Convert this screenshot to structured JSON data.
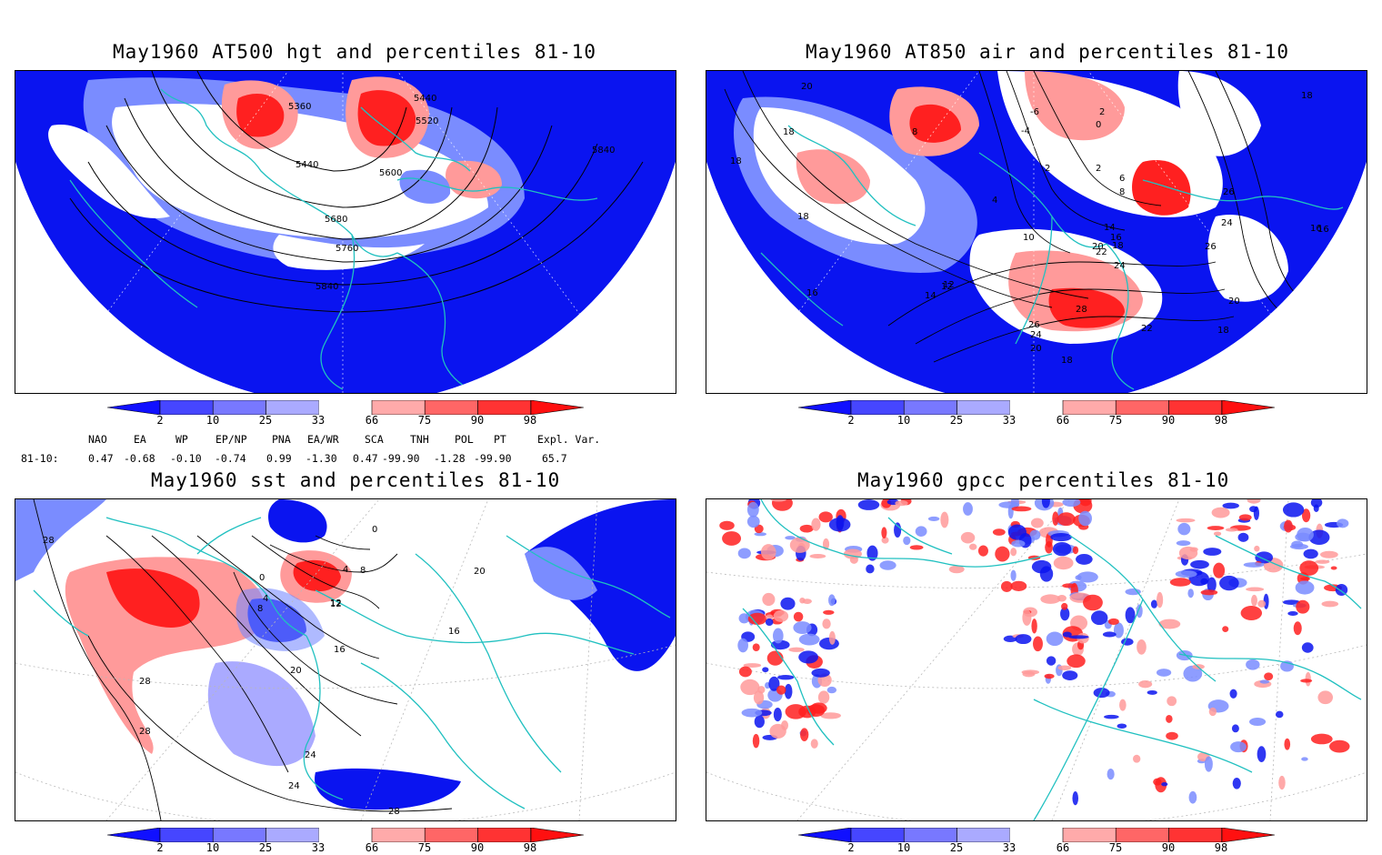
{
  "panels": [
    {
      "id": "hgt",
      "title": "May1960 AT500 hgt and percentiles 81-10",
      "contour_labels": [
        "5360",
        "5440",
        "5520",
        "5440",
        "5600",
        "5680",
        "5760",
        "5840",
        "5840"
      ]
    },
    {
      "id": "air",
      "title": "May1960 AT850 air and percentiles 81-10",
      "contour_labels": [
        "20",
        "18",
        "18",
        "18",
        "16",
        "14",
        "12",
        "10",
        "4",
        "2",
        "-6",
        "-4",
        "0",
        "2",
        "6",
        "8",
        "14",
        "16",
        "18",
        "20",
        "22",
        "24",
        "26",
        "28",
        "24",
        "22",
        "20",
        "18",
        "26",
        "24",
        "26",
        "16",
        "18",
        "20",
        "18",
        "18",
        "8",
        "2",
        "12",
        "16"
      ]
    },
    {
      "id": "sst",
      "title": "May1960 sst and percentiles 81-10",
      "contour_labels": [
        "28",
        "28",
        "24",
        "20",
        "16",
        "12",
        "8",
        "4",
        "0",
        "0",
        "4",
        "8",
        "12",
        "16",
        "20",
        "24",
        "28",
        "28"
      ]
    },
    {
      "id": "gpcc",
      "title": "May1960 gpcc percentiles 81-10",
      "contour_labels": []
    }
  ],
  "colorbar": {
    "ticks": [
      "2",
      "10",
      "25",
      "33",
      "66",
      "75",
      "90",
      "98"
    ],
    "colors": [
      "#1010ff",
      "#4646ff",
      "#7878ff",
      "#aaaaff",
      "#ffffff",
      "#ffaaaa",
      "#ff6666",
      "#ff3333",
      "#ff1010"
    ]
  },
  "indices": {
    "headers": [
      "NAO",
      "EA",
      "WP",
      "EP/NP",
      "PNA",
      "EA/WR",
      "SCA",
      "TNH",
      "POL",
      "PT",
      "Expl. Var."
    ],
    "row_label": "81-10:",
    "values": [
      "0.47",
      "-0.68",
      "-0.10",
      "-0.74",
      "0.99",
      "-1.30",
      "0.47",
      "-99.90",
      "-1.28",
      "-99.90",
      "65.7"
    ]
  },
  "colors": {
    "map_blue": "#0a14f0",
    "map_light_blue": "#7a8cff",
    "coast": "#20c0c0",
    "red": "#ff2020",
    "light_red": "#ff9a9a"
  }
}
